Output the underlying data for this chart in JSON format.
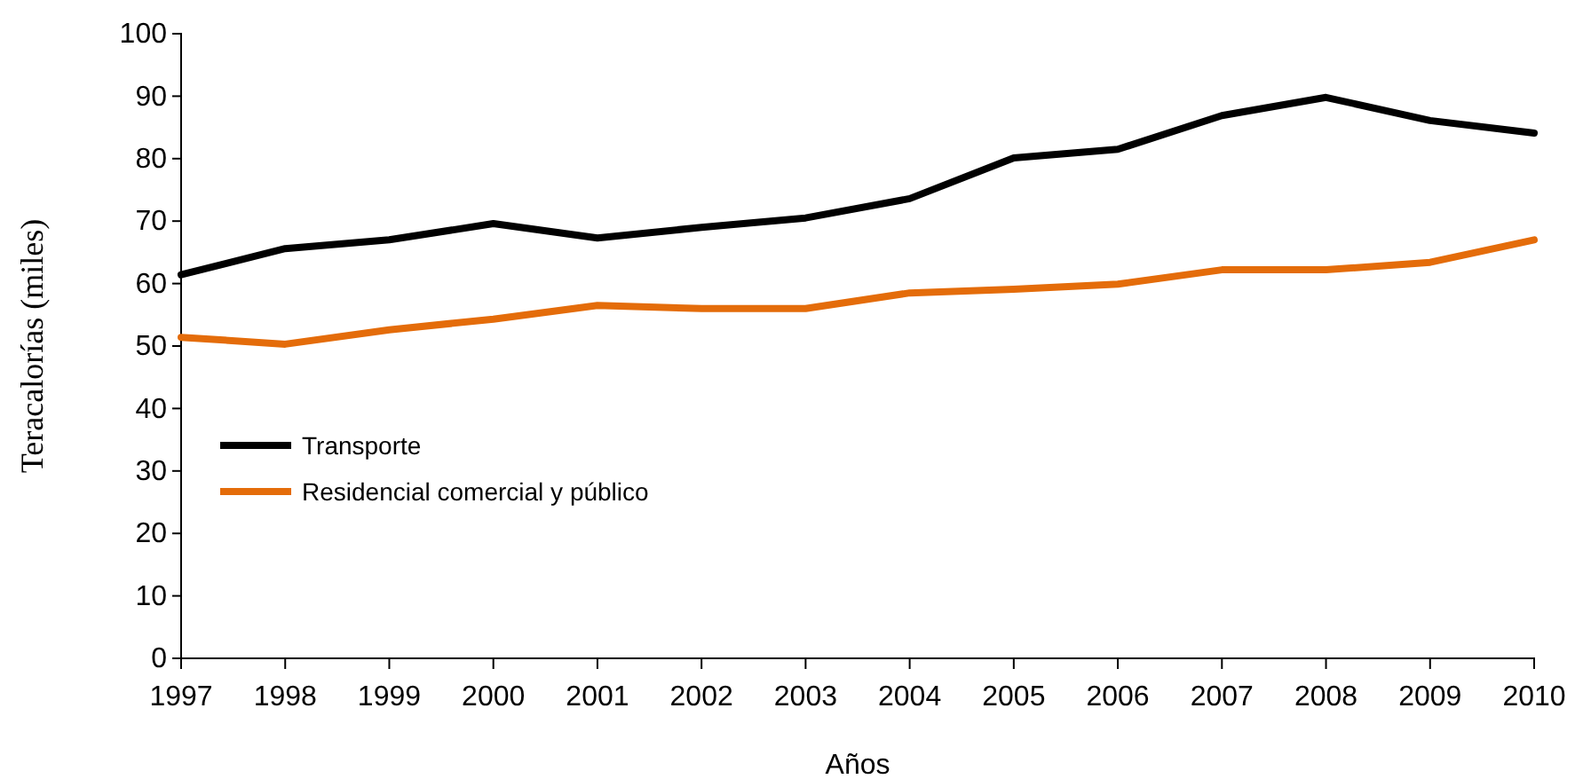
{
  "chart_data": {
    "type": "line",
    "xlabel": "Años",
    "ylabel": "Teracalorías (miles)",
    "categories": [
      "1997",
      "1998",
      "1999",
      "2000",
      "2001",
      "2002",
      "2003",
      "2004",
      "2005",
      "2006",
      "2007",
      "2008",
      "2009",
      "2010"
    ],
    "series": [
      {
        "name": "Transporte",
        "color": "#000000",
        "values": [
          61.4,
          65.6,
          67,
          69.6,
          67.3,
          69,
          70.5,
          73.6,
          80.1,
          81.5,
          86.9,
          89.8,
          86.1,
          84.1
        ]
      },
      {
        "name": "Residencial comercial y público",
        "color": "#e46c0a",
        "values": [
          51.4,
          50.3,
          52.6,
          54.3,
          56.5,
          56,
          56,
          58.5,
          59.1,
          59.9,
          62.2,
          62.2,
          63.4,
          67
        ]
      }
    ],
    "ylim": [
      0,
      100
    ],
    "yticks": [
      0,
      10,
      20,
      30,
      40,
      50,
      60,
      70,
      80,
      90,
      100
    ],
    "grid": false,
    "legend": "left",
    "marker": "none",
    "line_style": "solid"
  }
}
